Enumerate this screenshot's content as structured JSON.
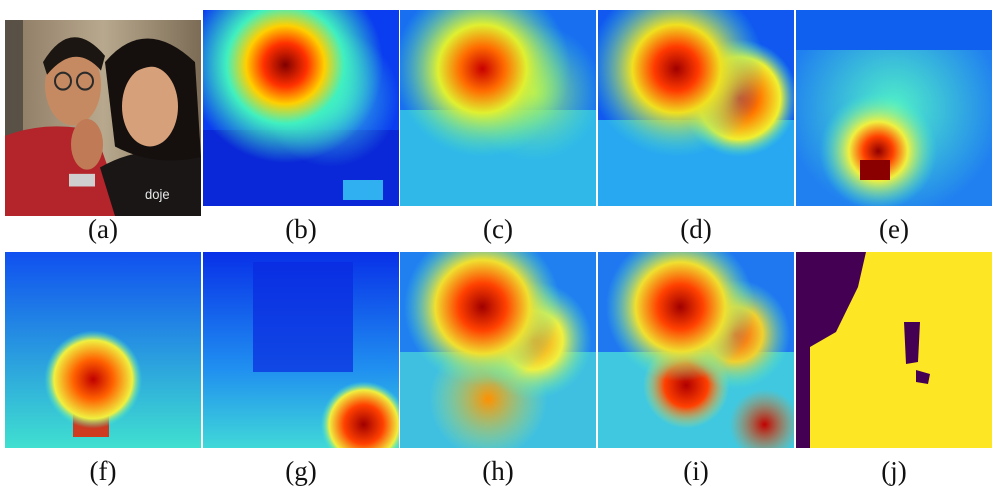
{
  "figure": {
    "panels": [
      {
        "id": "a",
        "label": "(a)",
        "kind": "photo"
      },
      {
        "id": "b",
        "label": "(b)",
        "kind": "heatmap",
        "peak": "left face"
      },
      {
        "id": "c",
        "label": "(c)",
        "kind": "heatmap",
        "peak": "left face"
      },
      {
        "id": "d",
        "label": "(d)",
        "kind": "heatmap",
        "peak": "both faces"
      },
      {
        "id": "e",
        "label": "(e)",
        "kind": "heatmap",
        "peak": "watch"
      },
      {
        "id": "f",
        "label": "(f)",
        "kind": "heatmap",
        "peak": "arm"
      },
      {
        "id": "g",
        "label": "(g)",
        "kind": "heatmap",
        "peak": "shirt print"
      },
      {
        "id": "h",
        "label": "(h)",
        "kind": "heatmap",
        "peak": "faces"
      },
      {
        "id": "i",
        "label": "(i)",
        "kind": "heatmap",
        "peak": "faces and arm"
      },
      {
        "id": "j",
        "label": "(j)",
        "kind": "mask"
      }
    ],
    "colors": {
      "jet_low": "#00008f",
      "jet_mid": "#20e0d0",
      "jet_high": "#800000",
      "mask_background": "#440154",
      "mask_foreground": "#fde725"
    }
  }
}
